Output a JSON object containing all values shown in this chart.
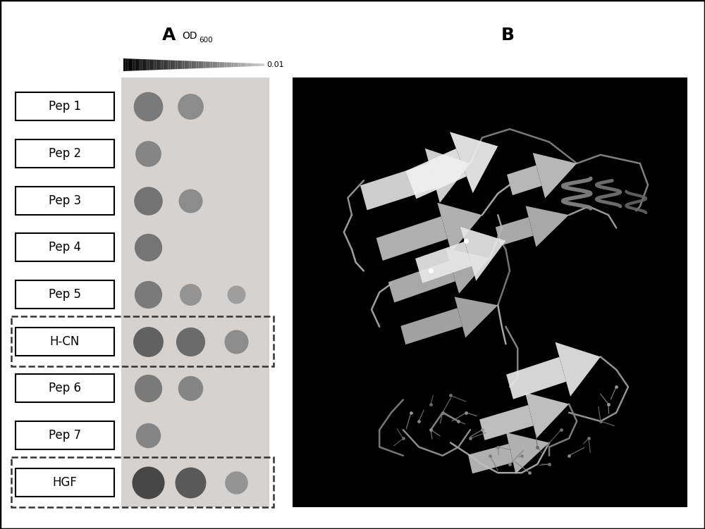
{
  "panel_A_label": "A",
  "panel_B_label": "B",
  "row_labels": [
    "Pep 1",
    "Pep 2",
    "Pep 3",
    "Pep 4",
    "Pep 5",
    "H-CN",
    "Pep 6",
    "Pep 7",
    "HGF"
  ],
  "bg_color": "#ffffff",
  "outer_border_color": "#000000",
  "label_box_color": "#ffffff",
  "label_box_border": "#000000",
  "dot_panel_bg": "#d5d2cf",
  "dot_rows_data": [
    {
      "dots": [
        {
          "gray": 0.48,
          "size": 900
        },
        {
          "gray": 0.55,
          "size": 700
        },
        {
          "gray": 0.0,
          "size": 0
        }
      ]
    },
    {
      "dots": [
        {
          "gray": 0.52,
          "size": 700
        },
        {
          "gray": 0.0,
          "size": 0
        },
        {
          "gray": 0.0,
          "size": 0
        }
      ]
    },
    {
      "dots": [
        {
          "gray": 0.45,
          "size": 850
        },
        {
          "gray": 0.55,
          "size": 600
        },
        {
          "gray": 0.0,
          "size": 0
        }
      ]
    },
    {
      "dots": [
        {
          "gray": 0.46,
          "size": 800
        },
        {
          "gray": 0.0,
          "size": 0
        },
        {
          "gray": 0.0,
          "size": 0
        }
      ]
    },
    {
      "dots": [
        {
          "gray": 0.48,
          "size": 800
        },
        {
          "gray": 0.58,
          "size": 500
        },
        {
          "gray": 0.62,
          "size": 350
        }
      ]
    },
    {
      "dots": [
        {
          "gray": 0.38,
          "size": 950
        },
        {
          "gray": 0.42,
          "size": 880
        },
        {
          "gray": 0.55,
          "size": 600
        }
      ]
    },
    {
      "dots": [
        {
          "gray": 0.48,
          "size": 800
        },
        {
          "gray": 0.52,
          "size": 650
        },
        {
          "gray": 0.0,
          "size": 0
        }
      ]
    },
    {
      "dots": [
        {
          "gray": 0.52,
          "size": 650
        },
        {
          "gray": 0.0,
          "size": 0
        },
        {
          "gray": 0.0,
          "size": 0
        }
      ]
    },
    {
      "dots": [
        {
          "gray": 0.28,
          "size": 1100
        },
        {
          "gray": 0.35,
          "size": 1000
        },
        {
          "gray": 0.58,
          "size": 550
        }
      ]
    }
  ],
  "title_fontsize": 18,
  "label_fontsize": 12,
  "od_fontsize": 10
}
